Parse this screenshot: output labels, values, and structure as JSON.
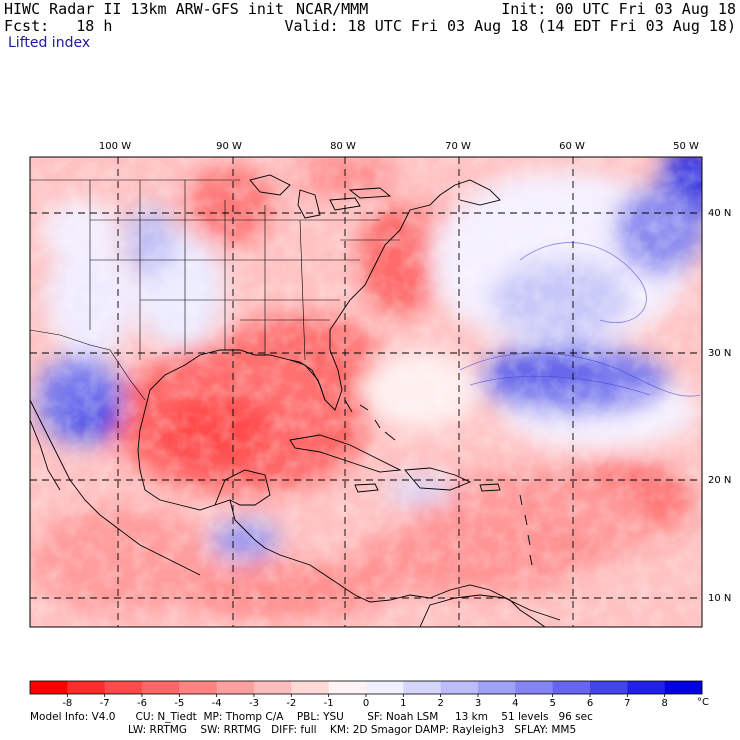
{
  "header": {
    "title_left": "HIWC Radar II 13km ARW-GFS init",
    "org": "NCAR/MMM",
    "init": "Init: 00 UTC Fri 03 Aug 18",
    "fcst": "Fcst:   18 h",
    "valid": "Valid: 18 UTC Fri 03 Aug 18 (14 EDT Fri 03 Aug 18)",
    "field": "Lifted index"
  },
  "map": {
    "lon_labels": [
      "100 W",
      "90 W",
      "80 W",
      "70 W",
      "60 W",
      "50 W"
    ],
    "lat_labels": [
      "40 N",
      "30 N",
      "20 N",
      "10 N"
    ]
  },
  "colorbar": {
    "ticks": [
      "-8",
      "-7",
      "-6",
      "-5",
      "-4",
      "-3",
      "-2",
      "-1",
      "0",
      "1",
      "2",
      "3",
      "4",
      "5",
      "6",
      "7",
      "8"
    ],
    "unit": "°C",
    "colors": [
      "#ff0000",
      "#ff2a2a",
      "#ff4a4a",
      "#ff6666",
      "#ff8383",
      "#ff9f9f",
      "#ffbcbc",
      "#ffd8d8",
      "#fff3f3",
      "#f0f0ff",
      "#d6d6fc",
      "#bcbcfa",
      "#a0a0f8",
      "#8484f4",
      "#6666f0",
      "#4444ec",
      "#2020e8",
      "#0000e0"
    ]
  },
  "footer": {
    "line1": "Model Info: V4.0      CU: N_Tiedt  MP: Thomp C/A    PBL: YSU       SF: Noah LSM     13 km    51 levels   96 sec",
    "line2": "LW: RRTMG    SW: RRTMG   DIFF: full    KM: 2D Smagor DAMP: Rayleigh3   SFLAY: MM5"
  }
}
